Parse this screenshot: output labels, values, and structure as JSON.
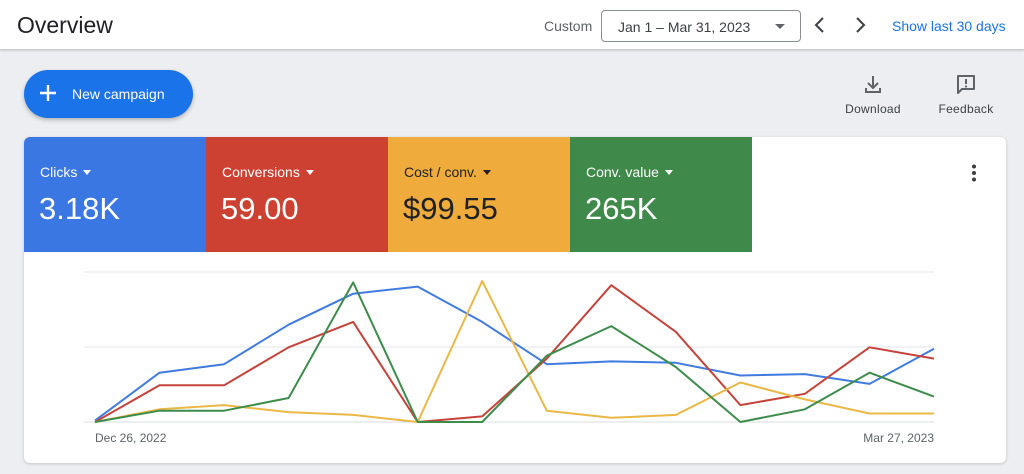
{
  "header": {
    "title": "Overview",
    "custom_label": "Custom",
    "date_range": "Jan 1 – Mar 31, 2023",
    "show_last": "Show last 30 days"
  },
  "actions": {
    "new_campaign": "New campaign",
    "download": "Download",
    "feedback": "Feedback"
  },
  "metrics": [
    {
      "label": "Clicks",
      "value": "3.18K",
      "color": "#3a77e2"
    },
    {
      "label": "Conversions",
      "value": "59.00",
      "color": "#cd4132"
    },
    {
      "label": "Cost / conv.",
      "value": "$99.55",
      "color": "#efab3c"
    },
    {
      "label": "Conv. value",
      "value": "265K",
      "color": "#3f8a4a"
    }
  ],
  "chart_data": {
    "type": "line",
    "x_start_label": "Dec 26, 2022",
    "x_end_label": "Mar 27, 2023",
    "points": 14,
    "grid": true,
    "series": [
      {
        "color": "#3f7be0",
        "values": [
          0.01,
          0.35,
          0.41,
          0.69,
          0.91,
          0.96,
          0.71,
          0.41,
          0.43,
          0.42,
          0.33,
          0.34,
          0.27,
          0.52
        ]
      },
      {
        "color": "#c5433a",
        "values": [
          0.0,
          0.26,
          0.26,
          0.53,
          0.71,
          0.0,
          0.04,
          0.45,
          0.97,
          0.64,
          0.12,
          0.2,
          0.53,
          0.45
        ]
      },
      {
        "color": "#e9b847",
        "values": [
          0.0,
          0.09,
          0.12,
          0.07,
          0.05,
          0.0,
          1.0,
          0.08,
          0.03,
          0.05,
          0.28,
          0.16,
          0.06,
          0.06
        ]
      },
      {
        "color": "#3e8c4c",
        "values": [
          0.0,
          0.08,
          0.08,
          0.17,
          0.99,
          0.0,
          0.0,
          0.47,
          0.68,
          0.39,
          0.0,
          0.09,
          0.35,
          0.18
        ]
      }
    ]
  }
}
